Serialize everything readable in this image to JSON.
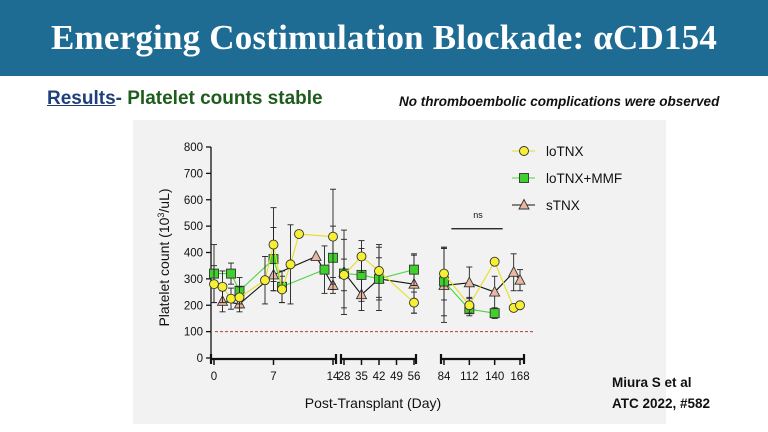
{
  "header": {
    "title": "Emerging Costimulation Blockade: αCD154"
  },
  "subheader": {
    "results": "Results",
    "dash": "- ",
    "stable": "Platelet counts stable"
  },
  "note": "No thromboembolic complications were observed",
  "citation": {
    "line1": "Miura S et al",
    "line2": "ATC 2022, #582"
  },
  "chart_data": {
    "type": "scatter",
    "xlabel": "Post-Transplant (Day)",
    "ylabel": "Platelet count (10",
    "ylabel_sup": "3",
    "ylabel_tail": "/uL)",
    "ylim": [
      0,
      800
    ],
    "yticks": [
      "0",
      "100",
      "200",
      "300",
      "400",
      "500",
      "600",
      "700",
      "800"
    ],
    "xtick_labels": [
      "0",
      "7",
      "14",
      "28",
      "35",
      "42",
      "49",
      "56",
      "84",
      "112",
      "140",
      "168"
    ],
    "reference_line": 100,
    "annotation": "ns",
    "legend_position": "top-right",
    "series": [
      {
        "name": "loTNX",
        "marker": "circle",
        "color": "#f6ef34",
        "line_color": "#e5df1f",
        "points": [
          {
            "x": "0",
            "y": 280,
            "err": 70
          },
          {
            "x": "1",
            "y": 270,
            "err": 60
          },
          {
            "x": "2",
            "y": 225,
            "err": 40
          },
          {
            "x": "3",
            "y": 230,
            "err": 40
          },
          {
            "x": "6",
            "y": 295,
            "err": 90
          },
          {
            "x": "7",
            "y": 430,
            "err": 140
          },
          {
            "x": "8",
            "y": 260,
            "err": 50
          },
          {
            "x": "9",
            "y": 355,
            "err": 150
          },
          {
            "x": "10",
            "y": 470,
            "err": 0
          },
          {
            "x": "14",
            "y": 460,
            "err": 180
          },
          {
            "x": "28",
            "y": 315,
            "err": 60
          },
          {
            "x": "35",
            "y": 385,
            "err": 60
          },
          {
            "x": "42",
            "y": 330,
            "err": 100
          },
          {
            "x": "56",
            "y": 210,
            "err": 40
          },
          {
            "x": "84",
            "y": 320,
            "err": 100
          },
          {
            "x": "112",
            "y": 200,
            "err": 30
          },
          {
            "x": "140",
            "y": 365,
            "err": 0
          },
          {
            "x": "161",
            "y": 190,
            "err": 0
          },
          {
            "x": "168",
            "y": 200,
            "err": 0
          }
        ]
      },
      {
        "name": "loTNX+MMF",
        "marker": "square",
        "color": "#3fd02c",
        "line_color": "#4ad43a",
        "points": [
          {
            "x": "0",
            "y": 320,
            "err": 110
          },
          {
            "x": "2",
            "y": 320,
            "err": 40
          },
          {
            "x": "3",
            "y": 255,
            "err": 50
          },
          {
            "x": "7",
            "y": 375,
            "err": 120
          },
          {
            "x": "8",
            "y": 270,
            "err": 60
          },
          {
            "x": "13",
            "y": 335,
            "err": 90
          },
          {
            "x": "14",
            "y": 380,
            "err": 120
          },
          {
            "x": "28",
            "y": 320,
            "err": 130
          },
          {
            "x": "35",
            "y": 315,
            "err": 100
          },
          {
            "x": "42",
            "y": 300,
            "err": 80
          },
          {
            "x": "56",
            "y": 335,
            "err": 60
          },
          {
            "x": "84",
            "y": 290,
            "err": 130
          },
          {
            "x": "112",
            "y": 185,
            "err": 25
          },
          {
            "x": "140",
            "y": 170,
            "err": 20
          }
        ]
      },
      {
        "name": "sTNX",
        "marker": "triangle",
        "color": "#e9b7a1",
        "line_color": "#111111",
        "points": [
          {
            "x": "1",
            "y": 215,
            "err": 40
          },
          {
            "x": "3",
            "y": 205,
            "err": 30
          },
          {
            "x": "7",
            "y": 315,
            "err": 60
          },
          {
            "x": "12",
            "y": 385,
            "err": 0
          },
          {
            "x": "14",
            "y": 275,
            "err": 30
          },
          {
            "x": "28",
            "y": 325,
            "err": 160
          },
          {
            "x": "35",
            "y": 240,
            "err": 60
          },
          {
            "x": "42",
            "y": 300,
            "err": 120
          },
          {
            "x": "56",
            "y": 280,
            "err": 110
          },
          {
            "x": "84",
            "y": 275,
            "err": 140
          },
          {
            "x": "112",
            "y": 285,
            "err": 60
          },
          {
            "x": "140",
            "y": 250,
            "err": 60
          },
          {
            "x": "161",
            "y": 325,
            "err": 70
          },
          {
            "x": "168",
            "y": 295,
            "err": 40
          }
        ]
      }
    ]
  }
}
